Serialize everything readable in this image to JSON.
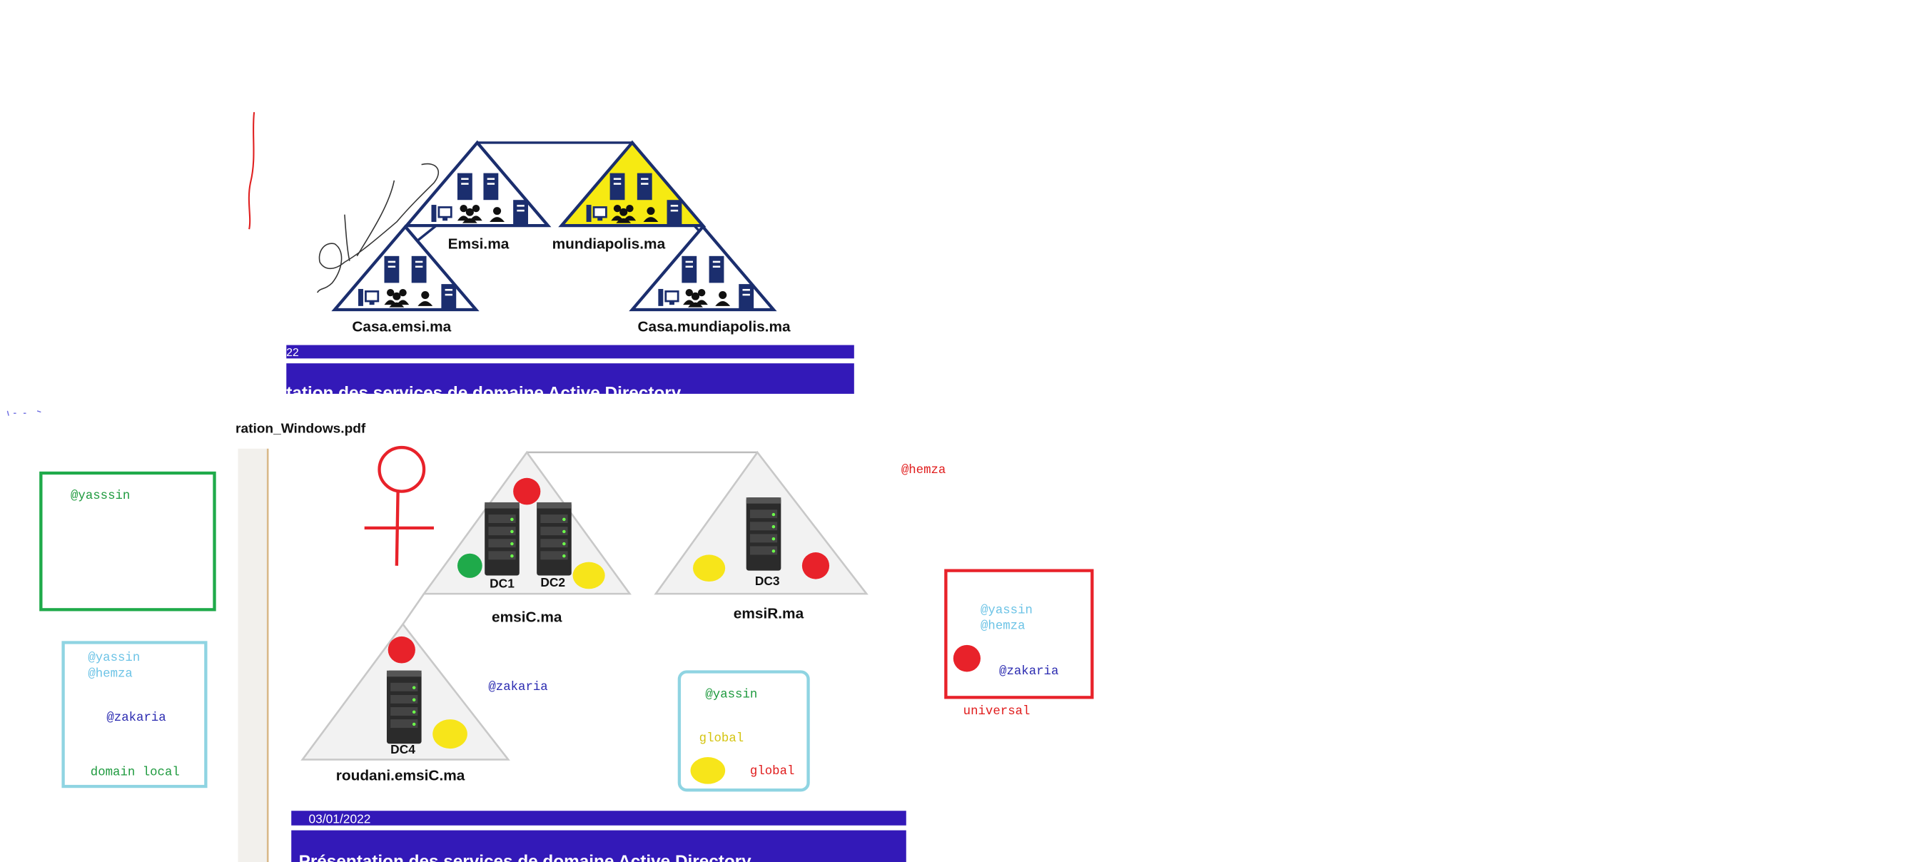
{
  "top_slide": {
    "domains": {
      "emsi": "Emsi.ma",
      "mundiapolis": "mundiapolis.ma",
      "casa_emsi": "Casa.emsi.ma",
      "casa_mundiapolis": "Casa.mundiapolis.ma"
    },
    "banner_date": "22",
    "banner_title": "tation des services de domaine Active Directory"
  },
  "pdf_tab": {
    "filename": "ration_Windows.pdf"
  },
  "bottom_slide": {
    "domains": {
      "emsic": "emsiC.ma",
      "emsir": "emsiR.ma",
      "roudani": "roudani.emsiC.ma"
    },
    "servers": {
      "dc1": "DC1",
      "dc2": "DC2",
      "dc3": "DC3",
      "dc4": "DC4"
    },
    "banner_date": "03/01/2022",
    "banner_title": "Présentation des services de domaine Active Directory"
  },
  "annotations": {
    "green_box_user": "@yasssin",
    "domain_local_box": {
      "user1": "@yassin",
      "user2": "@hemza",
      "user3": "@zakaria",
      "label": "domain local"
    },
    "zakaria_label": "@zakaria",
    "global_box": {
      "user": "@yassin",
      "label_yellow": "global",
      "label_red": "global"
    },
    "hemza_label": "@hemza",
    "universal_box": {
      "user1": "@yassin",
      "user2": "@hemza",
      "user3": "@zakaria",
      "label": "universal"
    }
  },
  "colors": {
    "navy": "#1b2e6e",
    "banner": "#3319b8",
    "yellow_fill": "#f6ea12",
    "marker_red": "#e8222a",
    "marker_green": "#1faa4a",
    "marker_yellow": "#f7e51a",
    "light_blue": "#8fd4e2",
    "dark_blue_text": "#2a2ab0",
    "green_text": "#1e9a3e",
    "light_blue_text": "#6cc3e6",
    "yellow_text": "#d4c410",
    "red_text": "#e01b1b"
  },
  "icons": [
    "server-icon",
    "workstation-icon",
    "users-icon",
    "user-icon",
    "venus-symbol-icon"
  ]
}
